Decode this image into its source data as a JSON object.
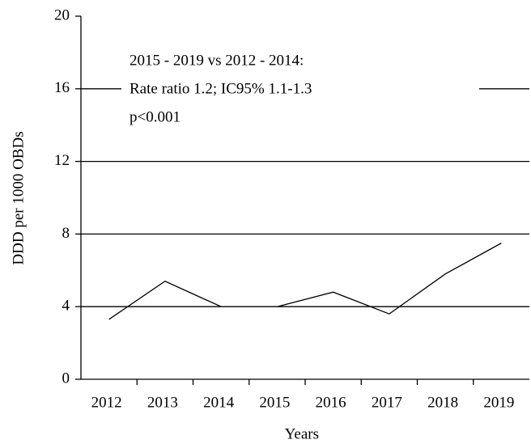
{
  "chart_data": {
    "type": "line",
    "xlabel": "Years",
    "ylabel": "DDD per 1000 OBDs",
    "categories": [
      "2012",
      "2013",
      "2014",
      "2015",
      "2016",
      "2017",
      "2018",
      "2019"
    ],
    "series": [
      {
        "color": "#000000",
        "values": [
          3.3,
          5.4,
          4.0,
          null,
          null,
          null,
          null,
          null
        ]
      },
      {
        "color": "#000000",
        "values": [
          null,
          null,
          null,
          4.0,
          4.8,
          3.6,
          5.8,
          7.5
        ]
      }
    ],
    "ylim": [
      0,
      20
    ],
    "yticks": [
      0,
      4,
      8,
      12,
      16,
      20
    ],
    "grid": true,
    "annotation": [
      "2015 - 2019 vs 2012 - 2014:",
      "Rate ratio 1.2; IC95% 1.1-1.3",
      "p<0.001"
    ]
  }
}
